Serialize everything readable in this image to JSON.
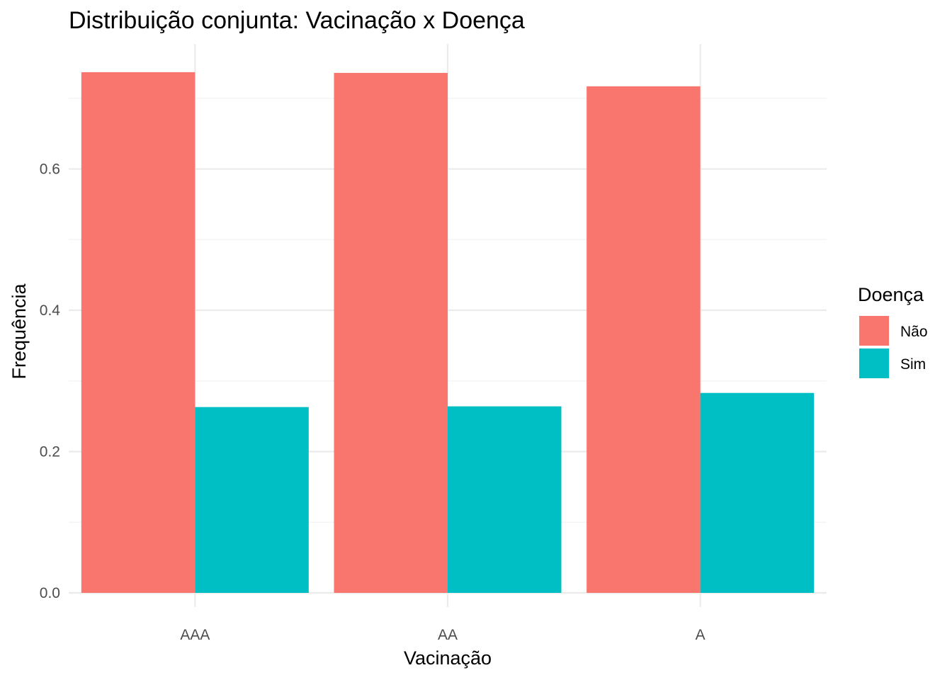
{
  "chart_data": {
    "type": "bar",
    "title": "Distribuição conjunta: Vacinação x Doença",
    "xlabel": "Vacinação",
    "ylabel": "Frequência",
    "categories": [
      "AAA",
      "AA",
      "A"
    ],
    "series": [
      {
        "name": "Não",
        "values": [
          0.737,
          0.736,
          0.717
        ],
        "color": "#F8766D"
      },
      {
        "name": "Sim",
        "values": [
          0.263,
          0.264,
          0.283
        ],
        "color": "#00BFC4"
      }
    ],
    "ylim": [
      0,
      0.777
    ],
    "y_ticks": [
      "0.0",
      "0.2",
      "0.4",
      "0.6"
    ],
    "grid": true,
    "legend": {
      "title": "Doença",
      "placement": "right"
    }
  }
}
